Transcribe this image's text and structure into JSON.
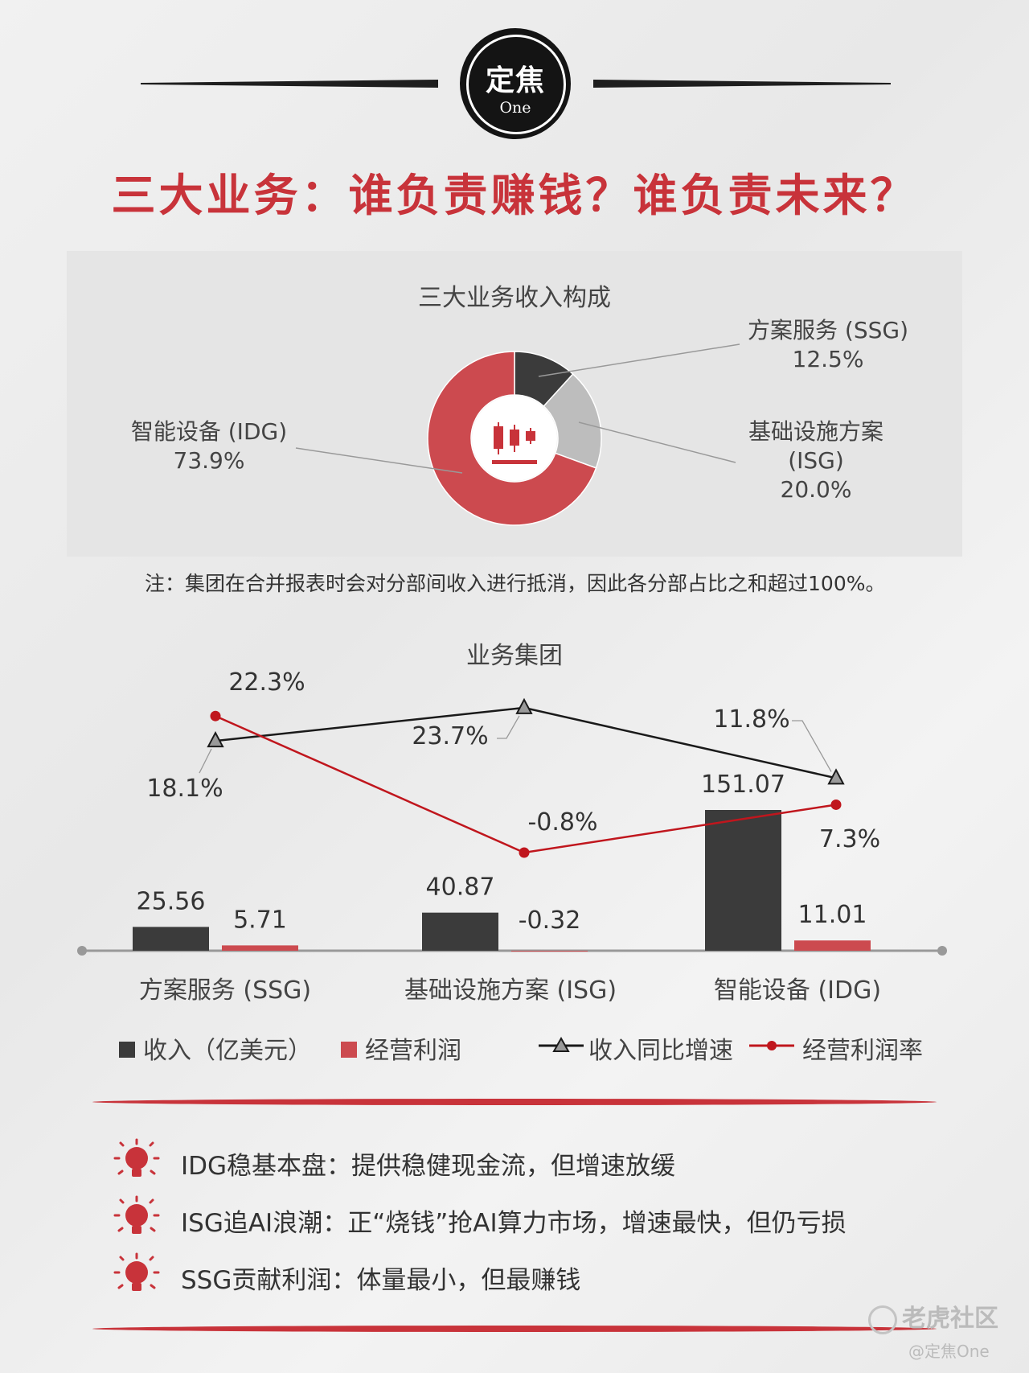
{
  "logo": {
    "cn": "定焦",
    "en": "One"
  },
  "title": "三大业务：谁负责赚钱？谁负责未来？",
  "donut": {
    "title": "三大业务收入构成",
    "segments": [
      {
        "name": "方案服务 (SSG)",
        "value": 12.5,
        "label": "12.5%",
        "color": "#3b3b3b"
      },
      {
        "name_line1": "基础设施方案",
        "name_line2": "(ISG)",
        "value": 20.0,
        "label": "20.0%",
        "color": "#bdbdbd"
      },
      {
        "name": "智能设备 (IDG)",
        "value": 73.9,
        "label": "73.9%",
        "color": "#cc4a4f"
      }
    ]
  },
  "note": "注：集团在合并报表时会对分部间收入进行抵消，因此各分部占比之和超过100%。",
  "chart_data": {
    "type": "bar",
    "title": "业务集团",
    "categories": [
      "方案服务 (SSG)",
      "基础设施方案 (ISG)",
      "智能设备 (IDG)"
    ],
    "series": [
      {
        "name": "收入（亿美元）",
        "type": "bar",
        "color": "#3b3b3b",
        "values": [
          25.56,
          40.87,
          151.07
        ],
        "labels": [
          "25.56",
          "40.87",
          "151.07"
        ]
      },
      {
        "name": "经营利润",
        "type": "bar",
        "color": "#cc4a4f",
        "values": [
          5.71,
          -0.32,
          11.01
        ],
        "labels": [
          "5.71",
          "-0.32",
          "11.01"
        ]
      },
      {
        "name": "收入同比增速",
        "type": "line",
        "marker": "triangle",
        "color": "#1a1a1a",
        "values": [
          18.1,
          23.7,
          11.8
        ],
        "labels": [
          "18.1%",
          "23.7%",
          "11.8%"
        ]
      },
      {
        "name": "经营利润率",
        "type": "line",
        "marker": "circle",
        "color": "#c0161d",
        "values": [
          22.3,
          -0.8,
          7.3
        ],
        "labels": [
          "22.3%",
          "-0.8%",
          "7.3%"
        ]
      }
    ]
  },
  "bullets": [
    "IDG稳基本盘：提供稳健现金流，但增速放缓",
    "ISG追AI浪潮：正“烧钱”抢AI算力市场，增速最快，但仍亏损",
    "SSG贡献利润：体量最小，但最赚钱"
  ],
  "watermark": {
    "brand": "老虎社区",
    "handle": "@定焦One"
  }
}
